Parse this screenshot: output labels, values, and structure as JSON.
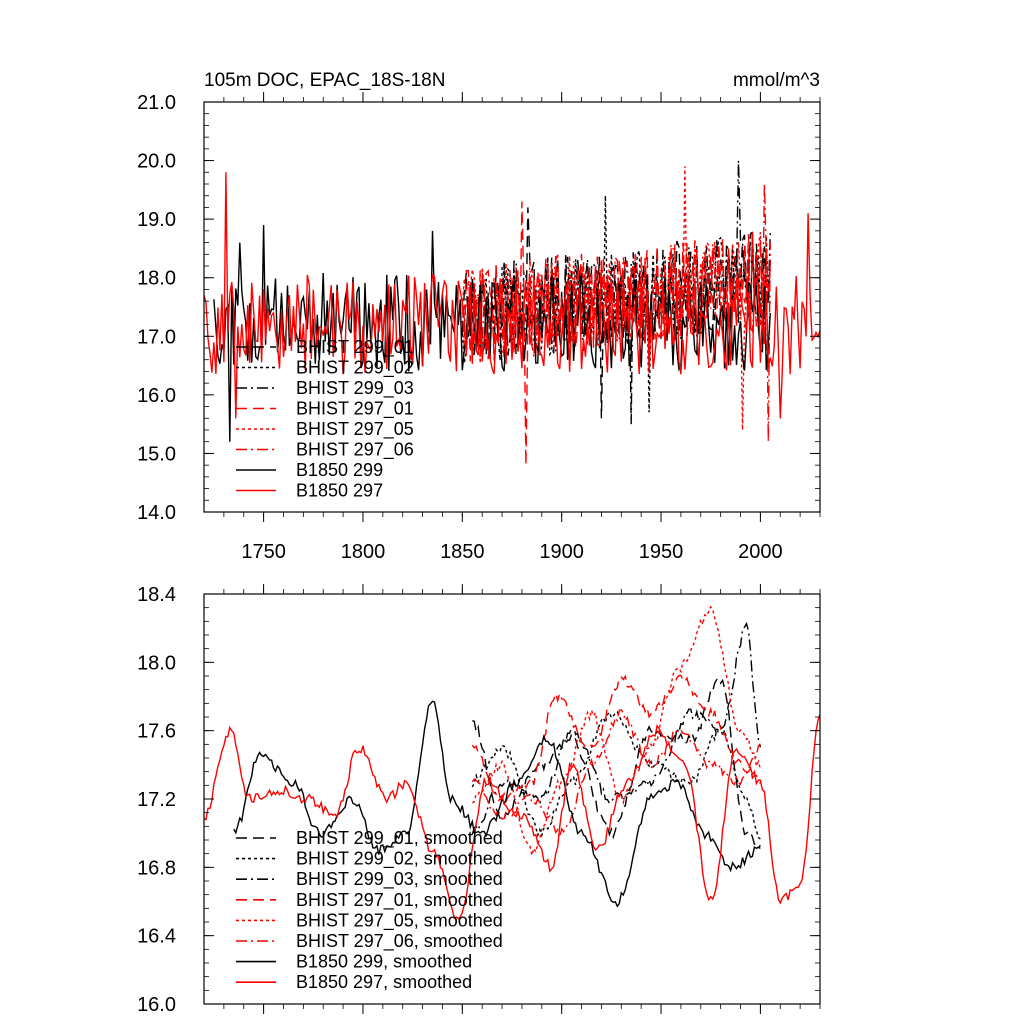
{
  "chart_data": [
    {
      "type": "line",
      "title": "105m DOC, EPAC_18S-18N",
      "units": "mmol/m^3",
      "xlim": [
        1720,
        2030
      ],
      "ylim": [
        14.0,
        21.0
      ],
      "x_ticks": [
        1750,
        1800,
        1850,
        1900,
        1950,
        2000
      ],
      "x_tick_labels": [
        "1750",
        "1800",
        "1850",
        "1900",
        "1950",
        "2000"
      ],
      "y_ticks": [
        14.0,
        15.0,
        16.0,
        17.0,
        18.0,
        19.0,
        20.0,
        21.0
      ],
      "y_tick_labels": [
        "14.0",
        "15.0",
        "16.0",
        "17.0",
        "18.0",
        "19.0",
        "20.0",
        "21.0"
      ],
      "grid": false,
      "legend_position": "lower-left",
      "series": [
        {
          "name": "BHIST 299_01",
          "color": "#000000",
          "dash": "long-dash",
          "x_range": [
            1850,
            2005
          ],
          "mean": 17.35,
          "amplitude": 0.85,
          "trend": 0.004,
          "extremes": [
            [
              1883,
              19.2
            ],
            [
              1920,
              15.6
            ]
          ]
        },
        {
          "name": "BHIST 299_02",
          "color": "#000000",
          "dash": "dot",
          "x_range": [
            1850,
            2005
          ],
          "mean": 17.35,
          "amplitude": 0.85,
          "trend": 0.004,
          "extremes": [
            [
              1922,
              19.4
            ],
            [
              1944,
              15.7
            ]
          ]
        },
        {
          "name": "BHIST 299_03",
          "color": "#000000",
          "dash": "dash-dot",
          "x_range": [
            1850,
            2005
          ],
          "mean": 17.35,
          "amplitude": 0.85,
          "trend": 0.004,
          "extremes": [
            [
              1989,
              20.0
            ],
            [
              1935,
              15.5
            ]
          ]
        },
        {
          "name": "BHIST 297_01",
          "color": "#ff0000",
          "dash": "long-dash",
          "x_range": [
            1850,
            2005
          ],
          "mean": 17.35,
          "amplitude": 0.85,
          "trend": 0.004,
          "extremes": [
            [
              1880,
              19.3
            ],
            [
              1882,
              14.8
            ]
          ]
        },
        {
          "name": "BHIST 297_05",
          "color": "#ff0000",
          "dash": "dot",
          "x_range": [
            1850,
            2005
          ],
          "mean": 17.35,
          "amplitude": 0.85,
          "trend": 0.004,
          "extremes": [
            [
              1962,
              19.9
            ],
            [
              1991,
              15.4
            ]
          ]
        },
        {
          "name": "BHIST 297_06",
          "color": "#ff0000",
          "dash": "dash-dot",
          "x_range": [
            1850,
            2005
          ],
          "mean": 17.35,
          "amplitude": 0.85,
          "trend": 0.004,
          "extremes": [
            [
              2002,
              19.6
            ],
            [
              2004,
              15.2
            ]
          ]
        },
        {
          "name": "B1850 299",
          "color": "#000000",
          "dash": "solid",
          "x_range": [
            1725,
            2005
          ],
          "mean": 17.25,
          "amplitude": 0.85,
          "trend": 0.0,
          "extremes": [
            [
              1738,
              18.6
            ],
            [
              1733,
              15.2
            ],
            [
              1750,
              18.9
            ],
            [
              1835,
              18.8
            ]
          ]
        },
        {
          "name": "B1850 297",
          "color": "#ff0000",
          "dash": "solid",
          "x_range": [
            1720,
            2030
          ],
          "mean": 17.2,
          "amplitude": 0.85,
          "trend": 0.0,
          "extremes": [
            [
              1731,
              19.8
            ],
            [
              1736,
              15.6
            ],
            [
              2024,
              19.1
            ],
            [
              2010,
              15.6
            ]
          ]
        }
      ]
    },
    {
      "type": "line",
      "title": "",
      "xlim": [
        1720,
        2030
      ],
      "ylim": [
        16.0,
        18.4
      ],
      "x_ticks": [
        1750,
        1800,
        1850,
        1900,
        1950,
        2000
      ],
      "x_tick_labels": [
        "",
        "",
        "",
        "",
        "",
        ""
      ],
      "y_ticks": [
        16.0,
        16.4,
        16.8,
        17.2,
        17.6,
        18.0,
        18.4
      ],
      "y_tick_labels": [
        "16.0",
        "16.4",
        "16.8",
        "17.2",
        "17.6",
        "18.0",
        "18.4"
      ],
      "grid": false,
      "legend_position": "lower-left",
      "series": [
        {
          "name": "BHIST 299_01, smoothed",
          "color": "#000000",
          "dash": "long-dash",
          "x_range": [
            1855,
            2000
          ],
          "anchors": [
            [
              1855,
              17.65
            ],
            [
              1870,
              17.1
            ],
            [
              1890,
              17.4
            ],
            [
              1905,
              17.55
            ],
            [
              1925,
              17.0
            ],
            [
              1945,
              17.6
            ],
            [
              1965,
              17.55
            ],
            [
              1980,
              17.9
            ],
            [
              1993,
              17.0
            ],
            [
              2000,
              16.9
            ]
          ]
        },
        {
          "name": "BHIST 299_02, smoothed",
          "color": "#000000",
          "dash": "dot",
          "x_range": [
            1855,
            2000
          ],
          "anchors": [
            [
              1855,
              17.3
            ],
            [
              1870,
              17.5
            ],
            [
              1890,
              17.0
            ],
            [
              1905,
              17.3
            ],
            [
              1925,
              17.7
            ],
            [
              1945,
              17.4
            ],
            [
              1965,
              17.3
            ],
            [
              1980,
              17.6
            ],
            [
              1993,
              17.2
            ],
            [
              2000,
              16.95
            ]
          ]
        },
        {
          "name": "BHIST 299_03, smoothed",
          "color": "#000000",
          "dash": "dash-dot",
          "x_range": [
            1855,
            2000
          ],
          "anchors": [
            [
              1855,
              17.0
            ],
            [
              1870,
              17.3
            ],
            [
              1890,
              17.2
            ],
            [
              1905,
              17.6
            ],
            [
              1925,
              17.2
            ],
            [
              1945,
              17.3
            ],
            [
              1965,
              17.7
            ],
            [
              1980,
              17.6
            ],
            [
              1993,
              18.2
            ],
            [
              2000,
              17.5
            ]
          ]
        },
        {
          "name": "BHIST 297_01, smoothed",
          "color": "#ff0000",
          "dash": "long-dash",
          "x_range": [
            1855,
            2000
          ],
          "anchors": [
            [
              1855,
              17.5
            ],
            [
              1870,
              17.2
            ],
            [
              1885,
              17.3
            ],
            [
              1897,
              17.8
            ],
            [
              1915,
              17.5
            ],
            [
              1930,
              17.9
            ],
            [
              1945,
              17.7
            ],
            [
              1960,
              17.9
            ],
            [
              1975,
              17.7
            ],
            [
              1990,
              17.4
            ],
            [
              2000,
              17.3
            ]
          ]
        },
        {
          "name": "BHIST 297_05, smoothed",
          "color": "#ff0000",
          "dash": "dot",
          "x_range": [
            1855,
            2000
          ],
          "anchors": [
            [
              1855,
              17.2
            ],
            [
              1870,
              17.4
            ],
            [
              1885,
              16.9
            ],
            [
              1900,
              17.3
            ],
            [
              1915,
              17.7
            ],
            [
              1930,
              17.2
            ],
            [
              1945,
              17.5
            ],
            [
              1958,
              17.95
            ],
            [
              1975,
              18.3
            ],
            [
              1990,
              17.6
            ],
            [
              2000,
              17.4
            ]
          ]
        },
        {
          "name": "BHIST 297_06, smoothed",
          "color": "#ff0000",
          "dash": "dash-dot",
          "x_range": [
            1855,
            2000
          ],
          "anchors": [
            [
              1855,
              17.3
            ],
            [
              1870,
              17.1
            ],
            [
              1885,
              17.2
            ],
            [
              1900,
              17.0
            ],
            [
              1915,
              17.4
            ],
            [
              1930,
              17.7
            ],
            [
              1945,
              17.4
            ],
            [
              1960,
              17.6
            ],
            [
              1975,
              17.4
            ],
            [
              1990,
              17.3
            ],
            [
              2000,
              17.5
            ]
          ]
        },
        {
          "name": "B1850 299, smoothed",
          "color": "#000000",
          "dash": "solid",
          "x_range": [
            1735,
            2000
          ],
          "anchors": [
            [
              1735,
              17.0
            ],
            [
              1748,
              17.45
            ],
            [
              1765,
              17.3
            ],
            [
              1778,
              17.0
            ],
            [
              1795,
              17.2
            ],
            [
              1808,
              16.9
            ],
            [
              1822,
              17.0
            ],
            [
              1835,
              17.8
            ],
            [
              1844,
              17.2
            ],
            [
              1860,
              17.0
            ],
            [
              1878,
              17.3
            ],
            [
              1893,
              17.55
            ],
            [
              1910,
              17.0
            ],
            [
              1928,
              16.6
            ],
            [
              1945,
              17.2
            ],
            [
              1958,
              17.3
            ],
            [
              1972,
              17.0
            ],
            [
              1985,
              16.8
            ],
            [
              2000,
              16.9
            ]
          ]
        },
        {
          "name": "B1850 297, smoothed",
          "color": "#ff0000",
          "dash": "solid",
          "x_range": [
            1720,
            2030
          ],
          "anchors": [
            [
              1720,
              17.1
            ],
            [
              1733,
              17.6
            ],
            [
              1743,
              17.2
            ],
            [
              1758,
              17.25
            ],
            [
              1772,
              17.2
            ],
            [
              1786,
              17.1
            ],
            [
              1798,
              17.5
            ],
            [
              1812,
              17.2
            ],
            [
              1822,
              17.3
            ],
            [
              1835,
              16.9
            ],
            [
              1848,
              16.5
            ],
            [
              1862,
              17.3
            ],
            [
              1880,
              17.1
            ],
            [
              1895,
              16.8
            ],
            [
              1905,
              17.4
            ],
            [
              1918,
              16.9
            ],
            [
              1933,
              17.3
            ],
            [
              1948,
              17.6
            ],
            [
              1962,
              17.4
            ],
            [
              1975,
              16.6
            ],
            [
              1988,
              17.5
            ],
            [
              2000,
              17.3
            ],
            [
              2010,
              16.6
            ],
            [
              2020,
              16.7
            ],
            [
              2030,
              17.7
            ]
          ]
        }
      ]
    }
  ]
}
